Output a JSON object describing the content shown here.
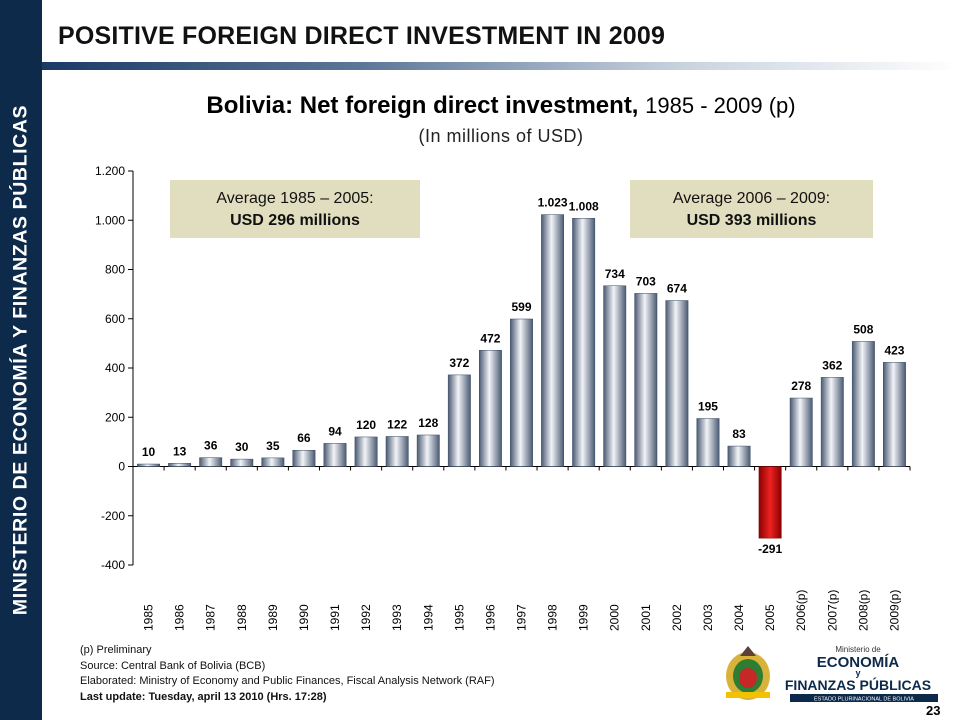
{
  "sidebar": {
    "text": "MINISTERIO DE ECONOMÍA Y FINANZAS PÚBLICAS"
  },
  "header": {
    "title": "POSITIVE FOREIGN DIRECT INVESTMENT IN 2009"
  },
  "annotations": [
    {
      "label": "Average 1985 – 2005:",
      "value": "USD 296 millions"
    },
    {
      "label": "Average 2006 – 2009:",
      "value": "USD 393 millions"
    }
  ],
  "footer": {
    "note": "(p) Preliminary",
    "source": "Source: Central Bank of Bolivia (BCB)",
    "elaborated": "Elaborated: Ministry of Economy and Public Finances, Fiscal Analysis Network (RAF)",
    "last_update": "Last update: Tuesday, april 13 2010 (Hrs. 17:28)"
  },
  "logo": {
    "line1": "Ministerio de",
    "line2": "ECONOMÍA",
    "line3": "y",
    "line4": "FINANZAS PÚBLICAS",
    "line5": "ESTADO PLURINACIONAL DE BOLIVIA"
  },
  "page_number": "23",
  "colors": {
    "sidebar": "#0d2a4a",
    "bar_positive": "#5a6e8c",
    "bar_negative": "#cc1111",
    "annotation_bg": "#e1ddbf"
  },
  "chart_data": {
    "type": "bar",
    "title_bold": "Bolivia: Net foreign direct investment,",
    "title_normal": "1985 - 2009 (p)",
    "subtitle": "(In millions of USD)",
    "categories": [
      "1985",
      "1986",
      "1987",
      "1988",
      "1989",
      "1990",
      "1991",
      "1992",
      "1993",
      "1994",
      "1995",
      "1996",
      "1997",
      "1998",
      "1999",
      "2000",
      "2001",
      "2002",
      "2003",
      "2004",
      "2005",
      "2006(p)",
      "2007(p)",
      "2008(p)",
      "2009(p)"
    ],
    "values": [
      10,
      13,
      36,
      30,
      35,
      66,
      94,
      120,
      122,
      128,
      372,
      472,
      599,
      1023,
      1008,
      734,
      703,
      674,
      195,
      83,
      -291,
      278,
      362,
      508,
      423
    ],
    "value_labels": [
      "10",
      "13",
      "36",
      "30",
      "35",
      "66",
      "94",
      "120",
      "122",
      "128",
      "372",
      "472",
      "599",
      "1.023",
      "1.008",
      "734",
      "703",
      "674",
      "195",
      "83",
      "-291",
      "278",
      "362",
      "508",
      "423"
    ],
    "ylim": [
      -400,
      1200
    ],
    "yticks": [
      -400,
      -200,
      0,
      200,
      400,
      600,
      800,
      1000,
      1200
    ],
    "ytick_labels": [
      "-400",
      "-200",
      "0",
      "200",
      "400",
      "600",
      "800",
      "1.000",
      "1.200"
    ],
    "grid": false,
    "legend": "none"
  }
}
